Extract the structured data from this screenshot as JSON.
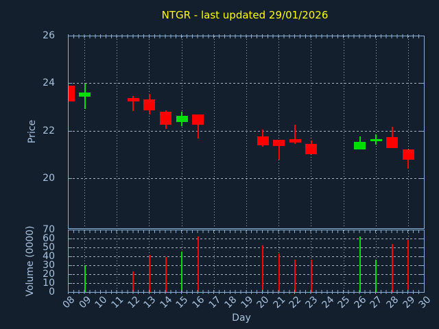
{
  "title": {
    "text": "NTGR - last updated 29/01/2026"
  },
  "colors": {
    "background": "#131f2d",
    "spine": "#8ab0d8",
    "tick_label": "#a9c3df",
    "grid": "#c9cfd7",
    "title": "#ffff00",
    "up": "#00e000",
    "down": "#ff0000"
  },
  "chart_data": [
    {
      "type": "candlestick",
      "ylabel": "Price",
      "ylim": [
        17.9,
        26.0
      ],
      "yticks": [
        26,
        24,
        22,
        20
      ],
      "xlim": [
        8,
        30
      ],
      "grid_days": [
        9,
        11,
        13,
        15,
        17,
        19,
        21,
        23,
        25,
        27,
        29
      ],
      "grid": "on",
      "series": [
        {
          "day": 8,
          "open": 23.93,
          "high": 23.93,
          "low": 23.27,
          "close": 23.27,
          "dir": "down"
        },
        {
          "day": 9,
          "open": 23.45,
          "high": 24.0,
          "low": 22.94,
          "close": 23.65,
          "dir": "up"
        },
        {
          "day": 12,
          "open": 23.42,
          "high": 23.5,
          "low": 22.86,
          "close": 23.25,
          "dir": "down"
        },
        {
          "day": 13,
          "open": 23.35,
          "high": 23.57,
          "low": 22.72,
          "close": 22.89,
          "dir": "down"
        },
        {
          "day": 14,
          "open": 22.82,
          "high": 22.89,
          "low": 22.1,
          "close": 22.29,
          "dir": "down"
        },
        {
          "day": 15,
          "open": 22.4,
          "high": 22.83,
          "low": 22.22,
          "close": 22.65,
          "dir": "up"
        },
        {
          "day": 16,
          "open": 22.72,
          "high": 22.72,
          "low": 21.71,
          "close": 22.29,
          "dir": "down"
        },
        {
          "day": 20,
          "open": 21.78,
          "high": 22.07,
          "low": 21.37,
          "close": 21.42,
          "dir": "down"
        },
        {
          "day": 21,
          "open": 21.64,
          "high": 21.64,
          "low": 20.82,
          "close": 21.4,
          "dir": "down"
        },
        {
          "day": 22,
          "open": 21.67,
          "high": 22.29,
          "low": 21.47,
          "close": 21.54,
          "dir": "down"
        },
        {
          "day": 23,
          "open": 21.48,
          "high": 21.62,
          "low": 21.05,
          "close": 21.05,
          "dir": "down"
        },
        {
          "day": 26,
          "open": 21.23,
          "high": 21.79,
          "low": 21.23,
          "close": 21.55,
          "dir": "up"
        },
        {
          "day": 27,
          "open": 21.66,
          "high": 21.88,
          "low": 21.45,
          "close": 21.66,
          "dir": "up"
        },
        {
          "day": 28,
          "open": 21.77,
          "high": 22.19,
          "low": 21.29,
          "close": 21.29,
          "dir": "down"
        },
        {
          "day": 29,
          "open": 21.23,
          "high": 21.23,
          "low": 20.43,
          "close": 20.81,
          "dir": "down"
        }
      ]
    },
    {
      "type": "bar",
      "ylabel": "Volume (0000)",
      "xlabel": "Day",
      "ylim": [
        0,
        70
      ],
      "yticks": [
        70,
        60,
        50,
        40,
        30,
        20,
        10,
        0
      ],
      "grid_days": [
        9,
        11,
        13,
        15,
        17,
        19,
        21,
        23,
        25,
        27,
        29
      ],
      "grid": "on",
      "xticks": [
        "08",
        "09",
        "10",
        "11",
        "12",
        "13",
        "14",
        "15",
        "16",
        "17",
        "18",
        "19",
        "20",
        "21",
        "22",
        "23",
        "24",
        "25",
        "26",
        "27",
        "28",
        "29",
        "30"
      ],
      "values": [
        {
          "day": 9,
          "value": 31,
          "dir": "up"
        },
        {
          "day": 12,
          "value": 24,
          "dir": "down"
        },
        {
          "day": 13,
          "value": 42,
          "dir": "down"
        },
        {
          "day": 14,
          "value": 40,
          "dir": "down"
        },
        {
          "day": 15,
          "value": 46,
          "dir": "up"
        },
        {
          "day": 16,
          "value": 63,
          "dir": "down"
        },
        {
          "day": 20,
          "value": 53,
          "dir": "down"
        },
        {
          "day": 21,
          "value": 44,
          "dir": "down"
        },
        {
          "day": 22,
          "value": 37,
          "dir": "down"
        },
        {
          "day": 23,
          "value": 37,
          "dir": "down"
        },
        {
          "day": 26,
          "value": 63,
          "dir": "up"
        },
        {
          "day": 27,
          "value": 37,
          "dir": "up"
        },
        {
          "day": 28,
          "value": 55,
          "dir": "down"
        },
        {
          "day": 29,
          "value": 59,
          "dir": "down"
        }
      ]
    }
  ]
}
